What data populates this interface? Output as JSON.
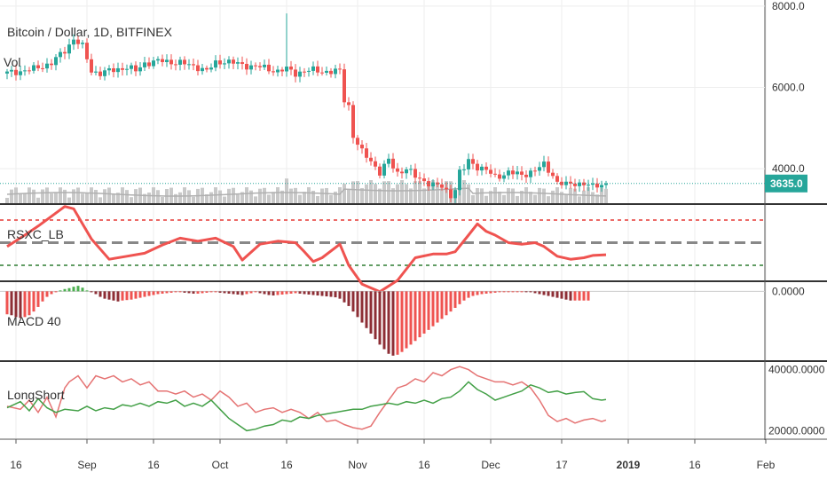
{
  "chart_data": [
    {
      "type": "candlestick",
      "title": "Bitcoin / Dollar, 1D, BITFINEX",
      "volume_label": "Vol",
      "y_ticks": [
        "8000.0",
        "6000.0",
        "4000.0"
      ],
      "y_tick_values": [
        8000,
        6000,
        4000
      ],
      "ylim": [
        3150,
        8150
      ],
      "last_price": "3635.0",
      "last_price_value": 3635,
      "colors": {
        "up": "#26a69a",
        "down": "#ef5350",
        "volume": "#c9c9c9",
        "volume_ma": "#b0b0b0",
        "last_line": "#26a69a"
      },
      "close_path": [
        [
          0,
          6350
        ],
        [
          6,
          6450
        ],
        [
          10,
          6600
        ],
        [
          13,
          6900
        ],
        [
          15,
          7200
        ],
        [
          17,
          7000
        ],
        [
          19,
          6400
        ],
        [
          21,
          6350
        ],
        [
          25,
          6450
        ],
        [
          27,
          6500
        ],
        [
          29,
          6400
        ],
        [
          31,
          6600
        ],
        [
          35,
          6650
        ],
        [
          39,
          6600
        ],
        [
          43,
          6500
        ],
        [
          45,
          6400
        ],
        [
          47,
          6600
        ],
        [
          49,
          6650
        ],
        [
          53,
          6550
        ],
        [
          57,
          6500
        ],
        [
          59,
          6450
        ],
        [
          61,
          6400
        ],
        [
          63,
          6450
        ],
        [
          65,
          6350
        ],
        [
          67,
          6400
        ],
        [
          69,
          6420
        ],
        [
          71,
          6400
        ],
        [
          73,
          6380
        ],
        [
          75,
          6400
        ],
        [
          76,
          5700
        ],
        [
          77,
          5550
        ],
        [
          78,
          4800
        ],
        [
          80,
          4400
        ],
        [
          82,
          4200
        ],
        [
          84,
          3900
        ],
        [
          86,
          4200
        ],
        [
          88,
          3900
        ],
        [
          90,
          4000
        ],
        [
          92,
          3800
        ],
        [
          94,
          3700
        ],
        [
          96,
          3600
        ],
        [
          98,
          3550
        ],
        [
          100,
          3350
        ],
        [
          101,
          3500
        ],
        [
          102,
          3900
        ],
        [
          103,
          4000
        ],
        [
          104,
          4200
        ],
        [
          106,
          4050
        ],
        [
          108,
          3950
        ],
        [
          110,
          3800
        ],
        [
          113,
          3900
        ],
        [
          116,
          3850
        ],
        [
          119,
          3950
        ],
        [
          121,
          4100
        ],
        [
          123,
          3850
        ],
        [
          124,
          3650
        ],
        [
          126,
          3600
        ],
        [
          128,
          3650
        ],
        [
          130,
          3620
        ],
        [
          132,
          3550
        ],
        [
          133,
          3600
        ],
        [
          135,
          3635
        ]
      ]
    },
    {
      "type": "line",
      "title": "RSXC_LB",
      "ylim": [
        0,
        100
      ],
      "levels": [
        {
          "value": 80,
          "color": "#e53935"
        },
        {
          "value": 50,
          "color": "#888888"
        },
        {
          "value": 20,
          "color": "#2e7d32"
        }
      ],
      "series": [
        {
          "name": "",
          "color": "#ef5350",
          "values": [
            [
              0,
              45
            ],
            [
              4,
              60
            ],
            [
              7,
              72
            ],
            [
              10,
              85
            ],
            [
              13,
              98
            ],
            [
              15,
              95
            ],
            [
              19,
              55
            ],
            [
              23,
              28
            ],
            [
              27,
              32
            ],
            [
              31,
              36
            ],
            [
              35,
              47
            ],
            [
              39,
              56
            ],
            [
              43,
              52
            ],
            [
              47,
              56
            ],
            [
              51,
              45
            ],
            [
              53,
              27
            ],
            [
              57,
              48
            ],
            [
              61,
              52
            ],
            [
              65,
              50
            ],
            [
              67,
              38
            ],
            [
              69,
              25
            ],
            [
              71,
              30
            ],
            [
              75,
              48
            ],
            [
              77,
              20
            ],
            [
              80,
              -5
            ],
            [
              84,
              -15
            ],
            [
              88,
              0
            ],
            [
              92,
              30
            ],
            [
              96,
              35
            ],
            [
              99,
              35
            ],
            [
              101,
              38
            ],
            [
              104,
              60
            ],
            [
              106,
              75
            ],
            [
              108,
              65
            ],
            [
              110,
              60
            ],
            [
              113,
              50
            ],
            [
              116,
              48
            ],
            [
              119,
              50
            ],
            [
              121,
              45
            ],
            [
              124,
              32
            ],
            [
              127,
              28
            ],
            [
              130,
              30
            ],
            [
              132,
              33
            ],
            [
              135,
              34
            ]
          ]
        }
      ]
    },
    {
      "type": "bar",
      "title": "MACD 40",
      "y_ticks": [
        "0.0000"
      ],
      "ylim": [
        -750,
        100
      ],
      "colors": {
        "positive": "#4caf50",
        "negative": "#ef5350",
        "negative_dark": "#8d2e35"
      },
      "values": [
        -250,
        -260,
        -280,
        -290,
        -280,
        -260,
        -220,
        -170,
        -110,
        -60,
        -30,
        -10,
        10,
        25,
        35,
        50,
        60,
        40,
        10,
        -10,
        -30,
        -60,
        -80,
        -90,
        -100,
        -110,
        -100,
        -95,
        -90,
        -80,
        -70,
        -60,
        -50,
        -40,
        -30,
        -25,
        -20,
        -15,
        -10,
        -10,
        -15,
        -20,
        -25,
        -25,
        -20,
        -15,
        -10,
        -10,
        -15,
        -20,
        -25,
        -30,
        -35,
        -40,
        -30,
        -20,
        -10,
        -20,
        -30,
        -40,
        -45,
        -40,
        -35,
        -30,
        -25,
        -20,
        -25,
        -30,
        -35,
        -40,
        -45,
        -50,
        -55,
        -60,
        -65,
        -80,
        -120,
        -160,
        -220,
        -280,
        -340,
        -400,
        -460,
        -520,
        -580,
        -630,
        -680,
        -700,
        -690,
        -660,
        -620,
        -580,
        -540,
        -500,
        -460,
        -420,
        -380,
        -340,
        -300,
        -260,
        -220,
        -180,
        -140,
        -100,
        -70,
        -50,
        -40,
        -30,
        -25,
        -20,
        -15,
        -10,
        -8,
        -5,
        -3,
        -2,
        -1,
        -3,
        -10,
        -20,
        -30,
        -40,
        -50,
        -60,
        -70,
        -80,
        -90,
        -100,
        -100,
        -100,
        -100,
        -100
      ]
    },
    {
      "type": "line",
      "title": "LongShort",
      "y_ticks": [
        "40000.0000",
        "20000.0000"
      ],
      "y_tick_values": [
        40000,
        20000
      ],
      "ylim": [
        17500,
        42500
      ],
      "series": [
        {
          "name": "",
          "color": "#e57373",
          "values": [
            [
              0,
              28000
            ],
            [
              3,
              27000
            ],
            [
              5,
              30000
            ],
            [
              7,
              26000
            ],
            [
              9,
              31000
            ],
            [
              11,
              24500
            ],
            [
              13,
              34000
            ],
            [
              14,
              36000
            ],
            [
              16,
              38000
            ],
            [
              17,
              36000
            ],
            [
              18,
              34000
            ],
            [
              20,
              38000
            ],
            [
              22,
              37000
            ],
            [
              24,
              38000
            ],
            [
              26,
              36000
            ],
            [
              28,
              37000
            ],
            [
              30,
              35000
            ],
            [
              32,
              36000
            ],
            [
              34,
              33000
            ],
            [
              36,
              33000
            ],
            [
              38,
              32000
            ],
            [
              40,
              33000
            ],
            [
              42,
              31000
            ],
            [
              44,
              32000
            ],
            [
              46,
              30000
            ],
            [
              48,
              33000
            ],
            [
              50,
              31000
            ],
            [
              52,
              28000
            ],
            [
              54,
              29000
            ],
            [
              56,
              26000
            ],
            [
              58,
              27000
            ],
            [
              60,
              27500
            ],
            [
              62,
              26000
            ],
            [
              64,
              27000
            ],
            [
              66,
              26000
            ],
            [
              68,
              24000
            ],
            [
              70,
              26000
            ],
            [
              72,
              23000
            ],
            [
              74,
              23500
            ],
            [
              76,
              22000
            ],
            [
              78,
              21000
            ],
            [
              80,
              20500
            ],
            [
              82,
              21500
            ],
            [
              84,
              26000
            ],
            [
              86,
              30000
            ],
            [
              88,
              34000
            ],
            [
              90,
              35000
            ],
            [
              92,
              37000
            ],
            [
              94,
              36000
            ],
            [
              96,
              39000
            ],
            [
              98,
              38000
            ],
            [
              100,
              40000
            ],
            [
              102,
              41000
            ],
            [
              104,
              40000
            ],
            [
              106,
              38000
            ],
            [
              108,
              37000
            ],
            [
              110,
              36000
            ],
            [
              112,
              36000
            ],
            [
              114,
              35000
            ],
            [
              116,
              36000
            ],
            [
              118,
              34000
            ],
            [
              120,
              30000
            ],
            [
              122,
              25000
            ],
            [
              124,
              23000
            ],
            [
              126,
              24000
            ],
            [
              128,
              22500
            ],
            [
              130,
              23500
            ],
            [
              132,
              24000
            ],
            [
              134,
              23000
            ],
            [
              135,
              23500
            ]
          ]
        },
        {
          "name": "",
          "color": "#43a047",
          "values": [
            [
              0,
              27500
            ],
            [
              3,
              29500
            ],
            [
              5,
              26500
            ],
            [
              7,
              30500
            ],
            [
              9,
              27500
            ],
            [
              11,
              26000
            ],
            [
              13,
              27000
            ],
            [
              16,
              26500
            ],
            [
              18,
              28000
            ],
            [
              20,
              26500
            ],
            [
              22,
              27500
            ],
            [
              24,
              27000
            ],
            [
              26,
              28500
            ],
            [
              28,
              28000
            ],
            [
              30,
              29000
            ],
            [
              32,
              28000
            ],
            [
              34,
              29500
            ],
            [
              36,
              29000
            ],
            [
              38,
              30000
            ],
            [
              40,
              28000
            ],
            [
              42,
              29000
            ],
            [
              44,
              28000
            ],
            [
              46,
              30000
            ],
            [
              48,
              27000
            ],
            [
              50,
              24000
            ],
            [
              52,
              22000
            ],
            [
              54,
              20000
            ],
            [
              56,
              20500
            ],
            [
              58,
              21500
            ],
            [
              60,
              22000
            ],
            [
              62,
              23500
            ],
            [
              64,
              23000
            ],
            [
              66,
              24500
            ],
            [
              68,
              24000
            ],
            [
              70,
              25000
            ],
            [
              72,
              25500
            ],
            [
              74,
              26000
            ],
            [
              76,
              26500
            ],
            [
              78,
              27000
            ],
            [
              80,
              27000
            ],
            [
              82,
              28000
            ],
            [
              84,
              28500
            ],
            [
              86,
              29000
            ],
            [
              88,
              28500
            ],
            [
              90,
              29500
            ],
            [
              92,
              29000
            ],
            [
              94,
              30000
            ],
            [
              96,
              29000
            ],
            [
              98,
              30500
            ],
            [
              100,
              31000
            ],
            [
              102,
              33000
            ],
            [
              104,
              36000
            ],
            [
              106,
              33500
            ],
            [
              108,
              32000
            ],
            [
              110,
              30000
            ],
            [
              112,
              31000
            ],
            [
              114,
              32000
            ],
            [
              116,
              33000
            ],
            [
              118,
              35000
            ],
            [
              120,
              34000
            ],
            [
              122,
              32500
            ],
            [
              124,
              33000
            ],
            [
              126,
              32000
            ],
            [
              128,
              32500
            ],
            [
              130,
              32800
            ],
            [
              132,
              30500
            ],
            [
              134,
              30000
            ],
            [
              135,
              30200
            ]
          ]
        }
      ]
    }
  ],
  "x_axis": {
    "ticks": [
      {
        "label": "16",
        "day": 2,
        "bold": false
      },
      {
        "label": "Sep",
        "day": 18,
        "bold": false
      },
      {
        "label": "16",
        "day": 33,
        "bold": false
      },
      {
        "label": "Oct",
        "day": 48,
        "bold": false
      },
      {
        "label": "16",
        "day": 63,
        "bold": false
      },
      {
        "label": "Nov",
        "day": 79,
        "bold": false
      },
      {
        "label": "16",
        "day": 94,
        "bold": false
      },
      {
        "label": "Dec",
        "day": 109,
        "bold": false
      },
      {
        "label": "17",
        "day": 125,
        "bold": false
      },
      {
        "label": "2019",
        "day": 140,
        "bold": true
      },
      {
        "label": "16",
        "day": 155,
        "bold": false
      },
      {
        "label": "Feb",
        "day": 171,
        "bold": false
      }
    ]
  }
}
